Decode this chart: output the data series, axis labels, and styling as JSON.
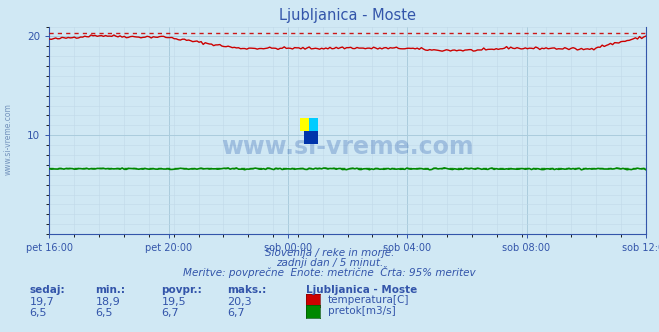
{
  "title": "Ljubljanica - Moste",
  "bg_color": "#d0e8f4",
  "plot_bg_color": "#d0e8f4",
  "grid_color_major": "#b8d4e8",
  "grid_color_minor": "#c8dcea",
  "title_color": "#3355aa",
  "axis_color": "#3355aa",
  "tick_color": "#3355aa",
  "text_color": "#3355aa",
  "temp_color": "#cc0000",
  "flow_color": "#008800",
  "dotted_temp_color": "#cc0000",
  "dotted_flow_color": "#008800",
  "ylim": [
    0,
    21
  ],
  "yticks": [
    10,
    20
  ],
  "xlabel_ticks": [
    "pet 16:00",
    "pet 20:00",
    "sob 00:00",
    "sob 04:00",
    "sob 08:00",
    "sob 12:00"
  ],
  "n_points": 288,
  "temp_min": 18.9,
  "temp_max": 20.3,
  "temp_avg": 19.5,
  "temp_cur": 19.7,
  "flow_min": 6.5,
  "flow_max": 6.7,
  "flow_avg": 6.7,
  "flow_cur": 6.5,
  "subtitle1": "Slovenija / reke in morje.",
  "subtitle2": "zadnji dan / 5 minut.",
  "subtitle3": "Meritve: povprečne  Enote: metrične  Črta: 95% meritev",
  "legend_title": "Ljubljanica - Moste",
  "label_temp": "temperatura[C]",
  "label_flow": "pretok[m3/s]",
  "watermark": "www.si-vreme.com",
  "sedaj_label": "sedaj:",
  "min_label": "min.:",
  "povpr_label": "povpr.:",
  "maks_label": "maks.:",
  "left_label": "www.si-vreme.com"
}
